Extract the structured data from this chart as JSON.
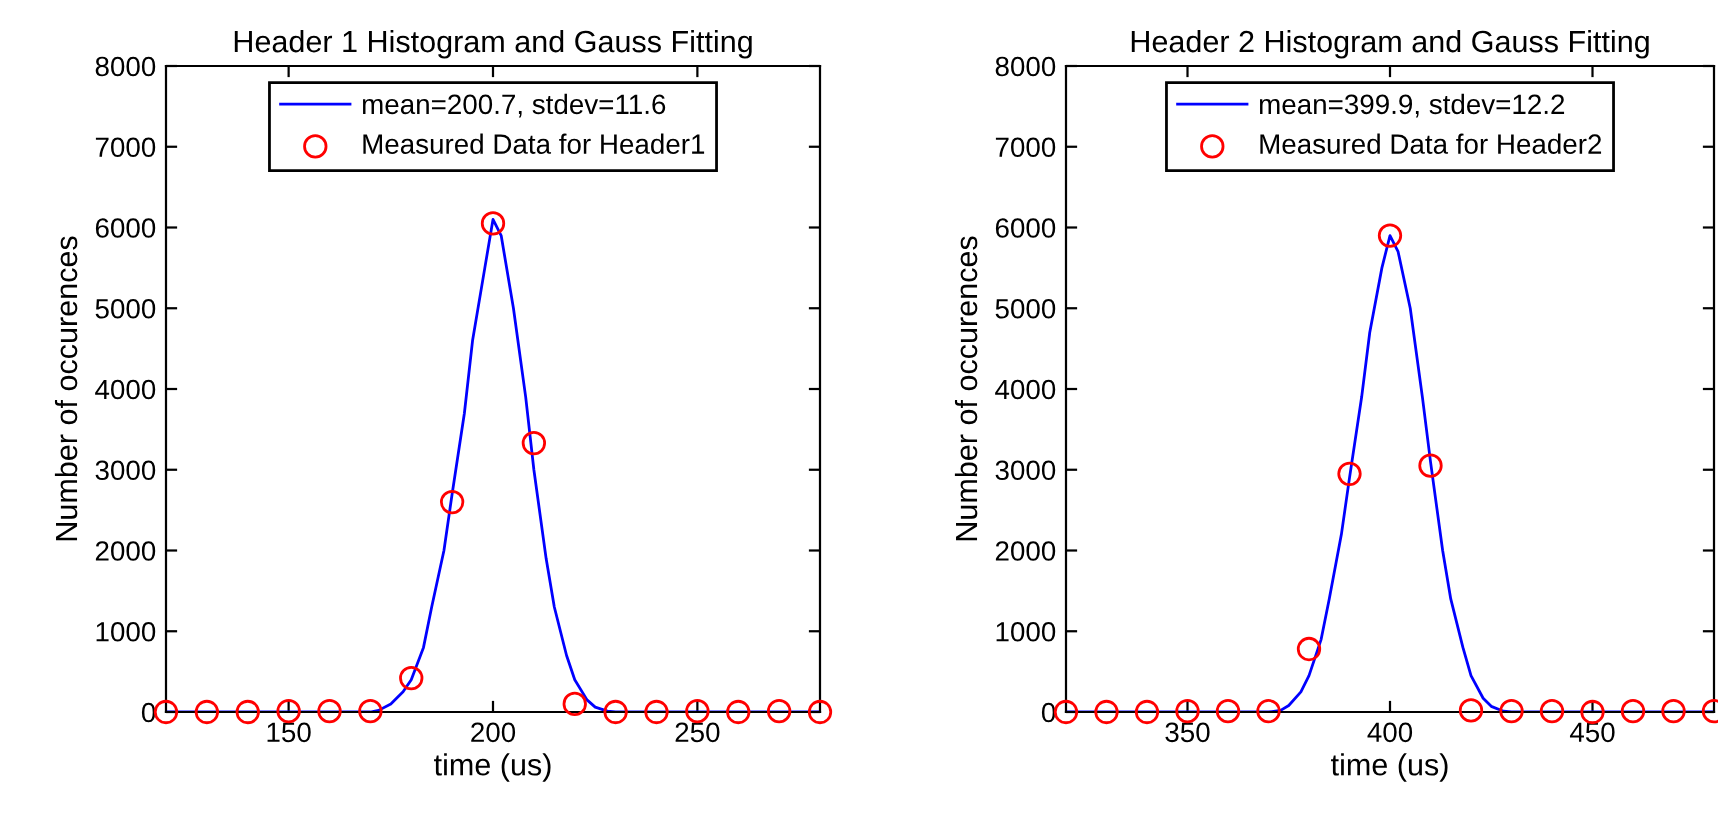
{
  "chart_data": [
    {
      "type": "line",
      "title": "Header 1 Histogram and Gauss Fitting",
      "xlabel": "time (us)",
      "ylabel": "Number of occurences",
      "xlim": [
        120,
        280
      ],
      "ylim": [
        0,
        8000
      ],
      "xticks": [
        150,
        200,
        250
      ],
      "yticks": [
        0,
        1000,
        2000,
        3000,
        4000,
        5000,
        6000,
        7000,
        8000
      ],
      "grid": false,
      "legend": "top",
      "series": [
        {
          "name": "mean=200.7, stdev=11.6",
          "type": "line",
          "color": "#0000ff",
          "marker": "none",
          "x": [
            120,
            170,
            172,
            175,
            178,
            180,
            183,
            185,
            188,
            190,
            193,
            195,
            198,
            200,
            202,
            205,
            208,
            210,
            213,
            215,
            218,
            220,
            223,
            225,
            228,
            230,
            280
          ],
          "values": [
            0,
            0,
            20,
            100,
            250,
            400,
            800,
            1300,
            2000,
            2700,
            3700,
            4600,
            5500,
            6100,
            5900,
            5000,
            3900,
            3000,
            1900,
            1300,
            700,
            400,
            150,
            60,
            10,
            0,
            0
          ]
        },
        {
          "name": "Measured Data for Header1",
          "type": "scatter",
          "color": "#ff0000",
          "marker": "circle",
          "x": [
            120,
            130,
            140,
            150,
            160,
            170,
            180,
            190,
            200,
            210,
            220,
            230,
            240,
            250,
            260,
            270,
            280
          ],
          "values": [
            0,
            0,
            0,
            10,
            10,
            10,
            420,
            2600,
            6050,
            3330,
            100,
            0,
            0,
            10,
            0,
            10,
            0
          ]
        }
      ]
    },
    {
      "type": "line",
      "title": "Header 2 Histogram and Gauss Fitting",
      "xlabel": "time (us)",
      "ylabel": "Number of occurences",
      "xlim": [
        320,
        480
      ],
      "ylim": [
        0,
        8000
      ],
      "xticks": [
        350,
        400,
        450
      ],
      "yticks": [
        0,
        1000,
        2000,
        3000,
        4000,
        5000,
        6000,
        7000,
        8000
      ],
      "grid": false,
      "legend": "top",
      "series": [
        {
          "name": "mean=399.9, stdev=12.2",
          "type": "line",
          "color": "#0000ff",
          "marker": "none",
          "x": [
            320,
            370,
            373,
            375,
            378,
            380,
            383,
            385,
            388,
            390,
            393,
            395,
            398,
            400,
            402,
            405,
            408,
            410,
            413,
            415,
            418,
            420,
            423,
            425,
            428,
            430,
            480
          ],
          "values": [
            0,
            0,
            20,
            80,
            250,
            450,
            900,
            1400,
            2200,
            2900,
            3900,
            4700,
            5500,
            5900,
            5700,
            5000,
            3900,
            3100,
            2000,
            1400,
            800,
            450,
            170,
            70,
            10,
            0,
            0
          ]
        },
        {
          "name": "Measured Data for Header2",
          "type": "scatter",
          "color": "#ff0000",
          "marker": "circle",
          "x": [
            320,
            330,
            340,
            350,
            360,
            370,
            380,
            390,
            400,
            410,
            420,
            430,
            440,
            450,
            460,
            470,
            480
          ],
          "values": [
            0,
            0,
            0,
            10,
            10,
            10,
            780,
            2950,
            5900,
            3050,
            20,
            10,
            10,
            0,
            10,
            10,
            10
          ]
        }
      ]
    }
  ]
}
